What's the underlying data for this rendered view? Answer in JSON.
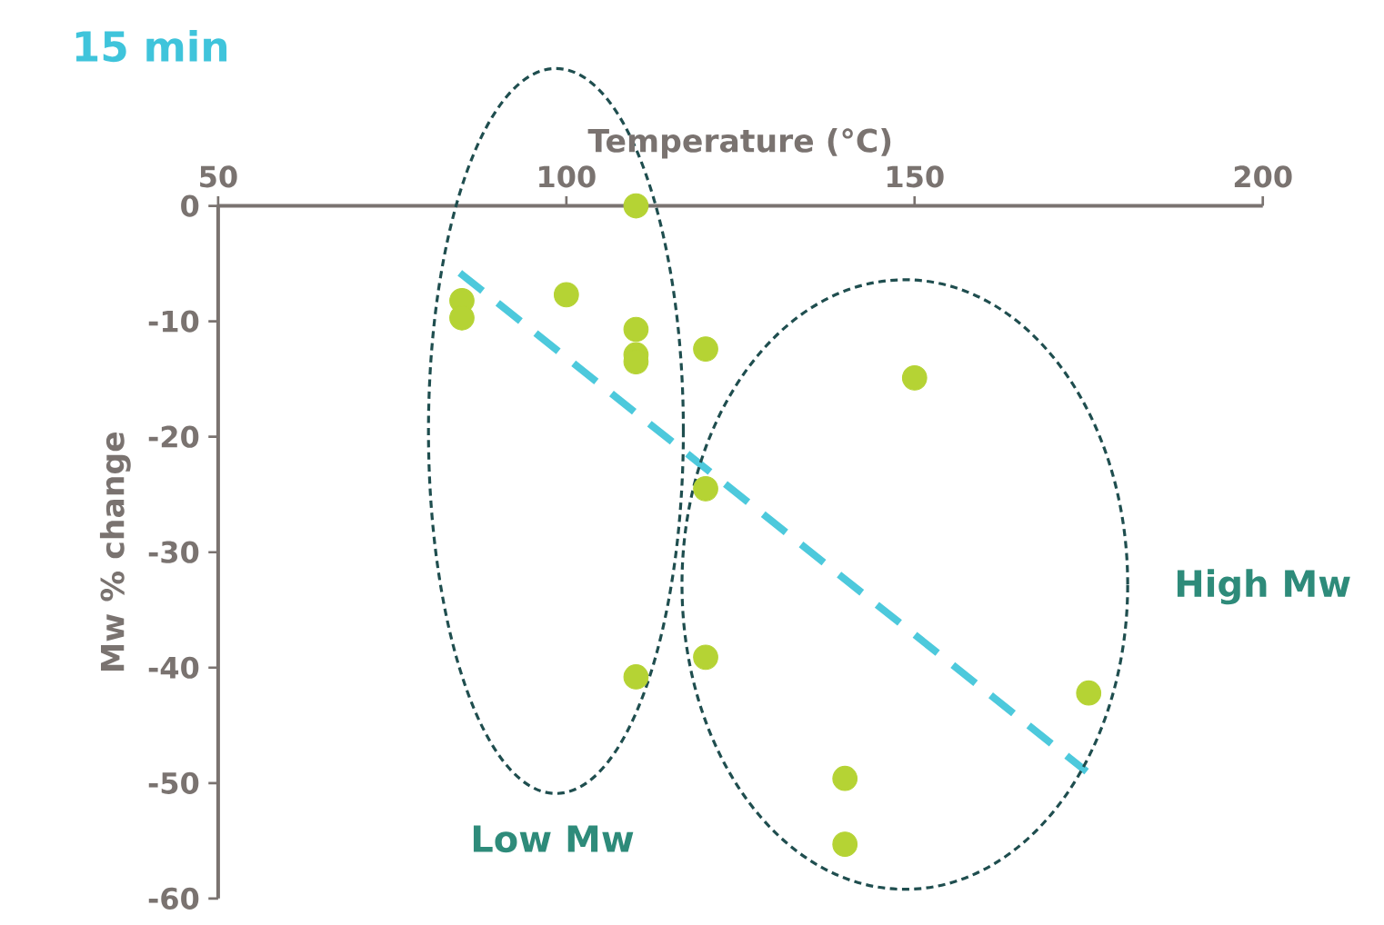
{
  "chart_data": {
    "type": "scatter",
    "title": "15 min",
    "xlabel": "Temperature (°C)",
    "ylabel": "Mw % change",
    "xlim": [
      50,
      200
    ],
    "xticks": [
      50,
      100,
      150,
      200
    ],
    "ylim": [
      -60,
      0
    ],
    "yticks": [
      -60,
      -50,
      -40,
      -30,
      -20,
      -10,
      0
    ],
    "grid": false,
    "marker": "circle",
    "series": [
      {
        "color": "#b5d334",
        "x": [
          85,
          85,
          100,
          110,
          110,
          110,
          110,
          120,
          120,
          120,
          110,
          150,
          140,
          140,
          175
        ],
        "values": [
          -8.2,
          -9.7,
          -7.7,
          0,
          -10.7,
          -12.9,
          -13.5,
          -12.4,
          -24.5,
          -39.1,
          -40.8,
          -14.9,
          -49.6,
          -55.3,
          -42.2
        ]
      },
      {
        "type": "line",
        "color": "#4dc9dc",
        "line_style": "dashed",
        "marker": "none",
        "x": [
          84.7,
          174.7
        ],
        "values": [
          -5.8,
          -49
        ]
      }
    ],
    "annotations": [
      "Low Mw",
      "High Mw"
    ]
  }
}
